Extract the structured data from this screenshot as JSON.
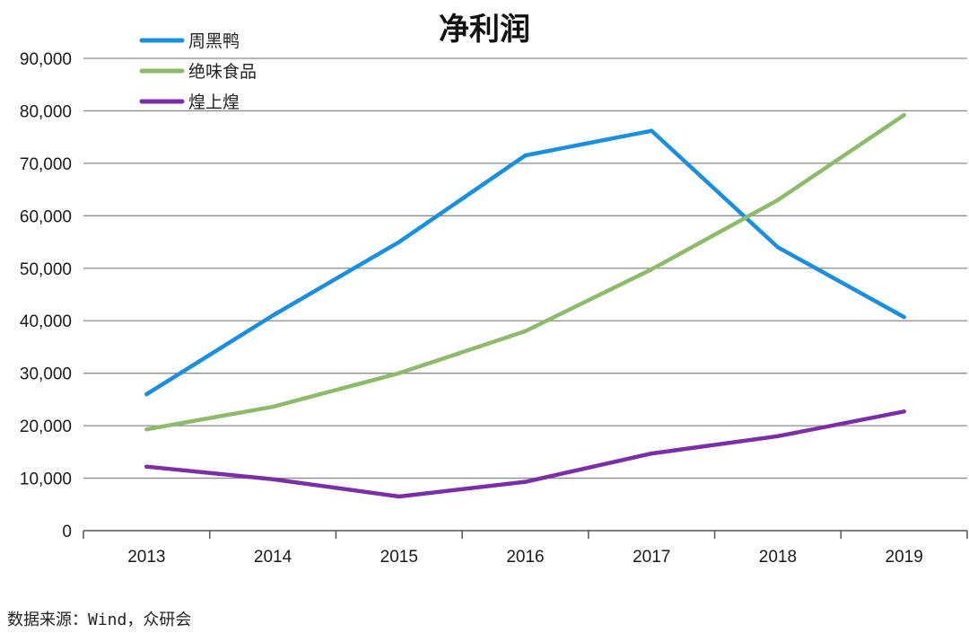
{
  "chart_data": {
    "type": "line",
    "title": "净利润",
    "xlabel": "",
    "ylabel": "",
    "categories": [
      "2013",
      "2014",
      "2015",
      "2016",
      "2017",
      "2018",
      "2019"
    ],
    "ylim": [
      0,
      90000
    ],
    "yticks": [
      0,
      10000,
      20000,
      30000,
      40000,
      50000,
      60000,
      70000,
      80000,
      90000
    ],
    "ytick_labels": [
      "0",
      "10,000",
      "20,000",
      "30,000",
      "40,000",
      "50,000",
      "60,000",
      "70,000",
      "80,000",
      "90,000"
    ],
    "grid": "horizontal",
    "legend_position": "top-left",
    "series": [
      {
        "name": "周黑鸭",
        "color": "#1a8fe0",
        "values": [
          26000,
          41000,
          55000,
          71500,
          76200,
          54000,
          40700
        ]
      },
      {
        "name": "绝味食品",
        "color": "#8dbb6a",
        "values": [
          19300,
          23600,
          30000,
          38000,
          49800,
          63000,
          79200
        ]
      },
      {
        "name": "煌上煌",
        "color": "#7a2fa6",
        "values": [
          12200,
          9800,
          6500,
          9300,
          14700,
          18000,
          22700
        ]
      }
    ]
  },
  "source": "数据来源：Wind，众研会"
}
